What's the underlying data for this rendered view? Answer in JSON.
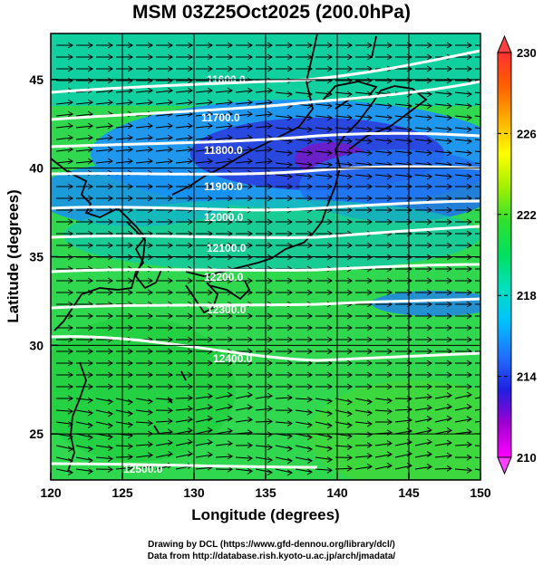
{
  "title": "MSM 03Z25Oct2025 (200.0hPa)",
  "xaxis": {
    "label": "Longitude (degrees)",
    "min": 120,
    "max": 150,
    "ticks": [
      "120",
      "125",
      "130",
      "135",
      "140",
      "145",
      "150"
    ]
  },
  "yaxis": {
    "label": "Latitude  (degrees)",
    "min": 22.4,
    "max": 47.6,
    "ticks": [
      "25",
      "30",
      "35",
      "40",
      "45"
    ]
  },
  "colorbar": {
    "min": 210,
    "max": 230,
    "ticks": [
      "210",
      "214",
      "218",
      "222",
      "226",
      "230"
    ],
    "colors": [
      "#ff00ff",
      "#a000d0",
      "#2020e0",
      "#2070ff",
      "#00c0ff",
      "#00e0c0",
      "#00e060",
      "#30e030",
      "#a0f000",
      "#ffff00",
      "#ffb000",
      "#ff6000",
      "#ff3030"
    ]
  },
  "contours": {
    "color": "#ffffff",
    "labels": [
      "11600.0",
      "11700.0",
      "11800.0",
      "11900.0",
      "12000.0",
      "12100.0",
      "12200.0",
      "12300.0",
      "12400.0",
      "12500.0"
    ]
  },
  "footer": {
    "line1": "Drawing by DCL (https://www.gfd-dennou.org/library/dcl/)",
    "line2": "Data from http://database.rish.kyoto-u.ac.jp/arch/jmadata/"
  },
  "colors": {
    "coastline": "#000000",
    "vectors": "#000000",
    "frame": "#000000"
  }
}
